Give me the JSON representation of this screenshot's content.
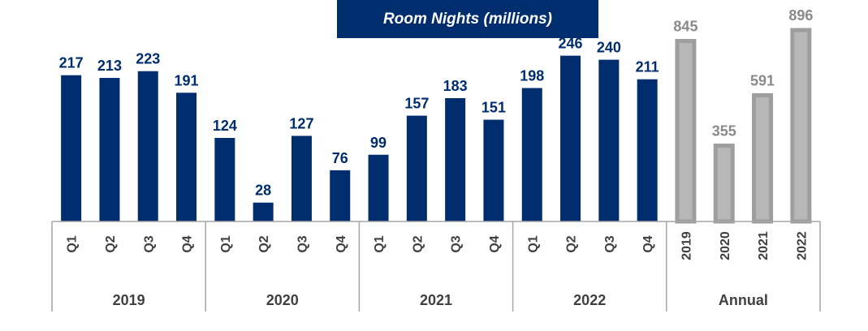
{
  "colors": {
    "quarter_bar": "#002D6E",
    "annual_bar": "#9E9E9E",
    "annual_bar_inner": "#B7B7B7",
    "annual_label": "#8A8A8A",
    "title_bg": "#002D6E",
    "axis": "#A6A6A6"
  },
  "chart_data": {
    "type": "bar",
    "title": "Room Nights (millions)",
    "ylabel": "",
    "xlabel": "",
    "grid": false,
    "legend": "none",
    "quarterly": {
      "ylim": [
        0,
        260
      ],
      "groups": [
        {
          "label": "2019",
          "categories": [
            "Q1",
            "Q2",
            "Q3",
            "Q4"
          ],
          "values": [
            217,
            213,
            223,
            191
          ]
        },
        {
          "label": "2020",
          "categories": [
            "Q1",
            "Q2",
            "Q3",
            "Q4"
          ],
          "values": [
            124,
            28,
            127,
            76
          ]
        },
        {
          "label": "2021",
          "categories": [
            "Q1",
            "Q2",
            "Q3",
            "Q4"
          ],
          "values": [
            99,
            157,
            183,
            151
          ]
        },
        {
          "label": "2022",
          "categories": [
            "Q1",
            "Q2",
            "Q3",
            "Q4"
          ],
          "values": [
            198,
            246,
            240,
            211
          ]
        }
      ]
    },
    "annual": {
      "label": "Annual",
      "ylim": [
        0,
        900
      ],
      "categories": [
        "2019",
        "2020",
        "2021",
        "2022"
      ],
      "values": [
        845,
        355,
        591,
        896
      ]
    }
  }
}
